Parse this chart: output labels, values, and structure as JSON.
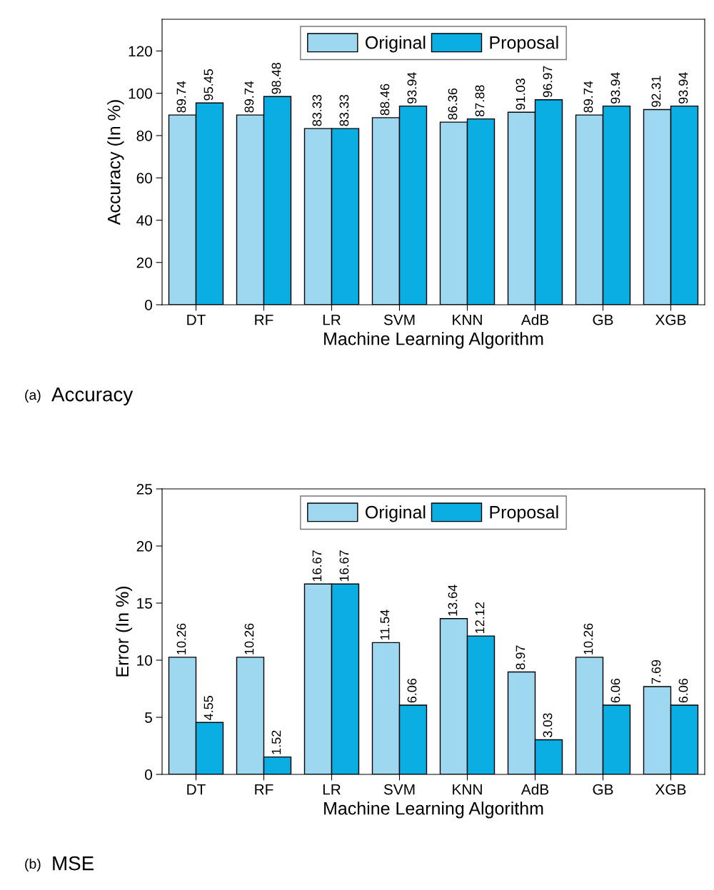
{
  "chart_data": [
    {
      "type": "bar",
      "xlabel": "Machine Learning Algorithm",
      "ylabel": "Accuracy (In %)",
      "categories": [
        "DT",
        "RF",
        "LR",
        "SVM",
        "KNN",
        "AdB",
        "GB",
        "XGB"
      ],
      "series": [
        {
          "name": "Original",
          "color": "#9dd8f0",
          "values": [
            89.74,
            89.74,
            83.33,
            88.46,
            86.36,
            91.03,
            89.74,
            92.31
          ]
        },
        {
          "name": "Proposal",
          "color": "#0aaee3",
          "values": [
            95.45,
            98.48,
            83.33,
            93.94,
            87.88,
            96.97,
            93.94,
            93.94
          ]
        }
      ],
      "ylim": [
        0,
        135
      ],
      "yticks": [
        0,
        20,
        40,
        60,
        80,
        100,
        120
      ],
      "data_labels": true,
      "legend": "top",
      "grid": false,
      "annotations": [
        "(a)",
        "Accuracy"
      ]
    },
    {
      "type": "bar",
      "xlabel": "Machine Learning Algorithm",
      "ylabel": "Error (In %)",
      "categories": [
        "DT",
        "RF",
        "LR",
        "SVM",
        "KNN",
        "AdB",
        "GB",
        "XGB"
      ],
      "series": [
        {
          "name": "Original",
          "color": "#9dd8f0",
          "values": [
            10.26,
            10.26,
            16.67,
            11.54,
            13.64,
            8.97,
            10.26,
            7.69
          ]
        },
        {
          "name": "Proposal",
          "color": "#0aaee3",
          "values": [
            4.55,
            1.52,
            16.67,
            6.06,
            12.12,
            3.03,
            6.06,
            6.06
          ]
        }
      ],
      "ylim": [
        0,
        25
      ],
      "yticks": [
        0,
        5,
        10,
        15,
        20,
        25
      ],
      "data_labels": true,
      "legend": "top",
      "grid": false,
      "annotations": [
        "(b)",
        "MSE"
      ]
    }
  ]
}
